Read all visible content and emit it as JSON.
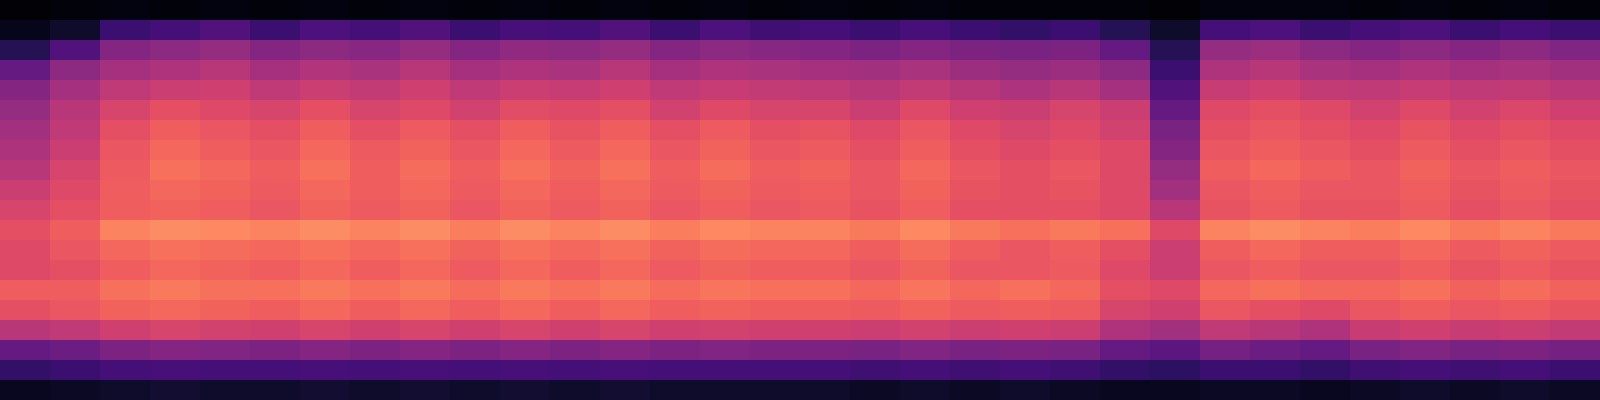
{
  "chart_data": {
    "type": "heatmap",
    "tick_labels": false,
    "zlim": [
      0,
      1
    ],
    "z": [
      [
        0.01,
        0.02,
        0.03,
        0.02,
        0.03,
        0.02,
        0.03,
        0.02,
        0.03,
        0.02,
        0.03,
        0.02,
        0.03,
        0.02,
        0.03,
        0.02,
        0.03,
        0.02,
        0.03,
        0.02,
        0.02,
        0.02,
        0.02,
        0.01,
        0.03,
        0.03,
        0.03,
        0.02,
        0.03,
        0.02,
        0.03,
        0.02
      ],
      [
        0.05,
        0.08,
        0.2,
        0.22,
        0.25,
        0.2,
        0.24,
        0.22,
        0.25,
        0.2,
        0.23,
        0.22,
        0.25,
        0.2,
        0.24,
        0.21,
        0.22,
        0.2,
        0.23,
        0.2,
        0.18,
        0.2,
        0.15,
        0.08,
        0.22,
        0.24,
        0.2,
        0.22,
        0.24,
        0.2,
        0.22,
        0.2
      ],
      [
        0.15,
        0.25,
        0.38,
        0.4,
        0.42,
        0.38,
        0.4,
        0.39,
        0.42,
        0.38,
        0.41,
        0.4,
        0.42,
        0.38,
        0.4,
        0.39,
        0.38,
        0.36,
        0.38,
        0.36,
        0.35,
        0.36,
        0.3,
        0.15,
        0.42,
        0.44,
        0.4,
        0.38,
        0.4,
        0.38,
        0.4,
        0.37
      ],
      [
        0.3,
        0.4,
        0.46,
        0.48,
        0.5,
        0.46,
        0.49,
        0.47,
        0.5,
        0.46,
        0.48,
        0.47,
        0.5,
        0.46,
        0.48,
        0.47,
        0.46,
        0.45,
        0.47,
        0.44,
        0.42,
        0.44,
        0.4,
        0.2,
        0.48,
        0.5,
        0.47,
        0.46,
        0.48,
        0.46,
        0.47,
        0.45
      ],
      [
        0.38,
        0.46,
        0.52,
        0.55,
        0.56,
        0.52,
        0.55,
        0.53,
        0.56,
        0.52,
        0.55,
        0.54,
        0.56,
        0.52,
        0.54,
        0.53,
        0.52,
        0.5,
        0.53,
        0.5,
        0.48,
        0.5,
        0.46,
        0.25,
        0.54,
        0.56,
        0.53,
        0.52,
        0.54,
        0.52,
        0.53,
        0.51
      ],
      [
        0.42,
        0.5,
        0.58,
        0.62,
        0.6,
        0.58,
        0.62,
        0.58,
        0.6,
        0.57,
        0.61,
        0.6,
        0.62,
        0.57,
        0.6,
        0.58,
        0.58,
        0.55,
        0.6,
        0.56,
        0.55,
        0.58,
        0.55,
        0.3,
        0.6,
        0.62,
        0.6,
        0.57,
        0.6,
        0.57,
        0.59,
        0.56
      ],
      [
        0.45,
        0.52,
        0.62,
        0.66,
        0.64,
        0.62,
        0.66,
        0.62,
        0.65,
        0.62,
        0.66,
        0.63,
        0.66,
        0.62,
        0.65,
        0.62,
        0.63,
        0.6,
        0.64,
        0.6,
        0.58,
        0.6,
        0.57,
        0.35,
        0.62,
        0.64,
        0.62,
        0.6,
        0.63,
        0.6,
        0.62,
        0.6
      ],
      [
        0.48,
        0.55,
        0.64,
        0.68,
        0.66,
        0.64,
        0.68,
        0.65,
        0.67,
        0.64,
        0.68,
        0.65,
        0.68,
        0.64,
        0.67,
        0.64,
        0.65,
        0.62,
        0.66,
        0.62,
        0.6,
        0.62,
        0.6,
        0.38,
        0.64,
        0.66,
        0.64,
        0.62,
        0.65,
        0.62,
        0.64,
        0.62
      ],
      [
        0.5,
        0.58,
        0.65,
        0.7,
        0.68,
        0.66,
        0.7,
        0.66,
        0.69,
        0.66,
        0.7,
        0.67,
        0.7,
        0.66,
        0.69,
        0.66,
        0.67,
        0.64,
        0.68,
        0.64,
        0.62,
        0.64,
        0.6,
        0.42,
        0.66,
        0.68,
        0.66,
        0.64,
        0.67,
        0.64,
        0.66,
        0.64
      ],
      [
        0.55,
        0.6,
        0.66,
        0.68,
        0.67,
        0.65,
        0.68,
        0.66,
        0.68,
        0.65,
        0.68,
        0.66,
        0.68,
        0.65,
        0.67,
        0.65,
        0.66,
        0.64,
        0.67,
        0.63,
        0.62,
        0.63,
        0.6,
        0.45,
        0.64,
        0.66,
        0.64,
        0.64,
        0.66,
        0.63,
        0.65,
        0.63
      ],
      [
        0.58,
        0.62,
        0.66,
        0.67,
        0.66,
        0.64,
        0.67,
        0.65,
        0.67,
        0.64,
        0.67,
        0.65,
        0.67,
        0.64,
        0.66,
        0.64,
        0.65,
        0.63,
        0.66,
        0.62,
        0.62,
        0.62,
        0.6,
        0.5,
        0.63,
        0.65,
        0.63,
        0.63,
        0.65,
        0.62,
        0.64,
        0.62
      ],
      [
        0.62,
        0.66,
        0.74,
        0.76,
        0.75,
        0.74,
        0.76,
        0.74,
        0.76,
        0.73,
        0.76,
        0.74,
        0.76,
        0.73,
        0.75,
        0.74,
        0.74,
        0.72,
        0.75,
        0.72,
        0.7,
        0.72,
        0.7,
        0.6,
        0.74,
        0.76,
        0.74,
        0.73,
        0.75,
        0.72,
        0.74,
        0.72
      ],
      [
        0.6,
        0.64,
        0.68,
        0.7,
        0.69,
        0.68,
        0.7,
        0.68,
        0.7,
        0.67,
        0.7,
        0.68,
        0.7,
        0.67,
        0.69,
        0.68,
        0.68,
        0.66,
        0.69,
        0.66,
        0.64,
        0.66,
        0.62,
        0.55,
        0.66,
        0.68,
        0.66,
        0.66,
        0.68,
        0.65,
        0.67,
        0.65
      ],
      [
        0.6,
        0.62,
        0.66,
        0.68,
        0.67,
        0.66,
        0.68,
        0.66,
        0.68,
        0.65,
        0.68,
        0.66,
        0.68,
        0.65,
        0.67,
        0.66,
        0.66,
        0.64,
        0.67,
        0.64,
        0.64,
        0.65,
        0.6,
        0.55,
        0.64,
        0.66,
        0.64,
        0.64,
        0.66,
        0.63,
        0.65,
        0.63
      ],
      [
        0.66,
        0.66,
        0.7,
        0.72,
        0.7,
        0.7,
        0.72,
        0.7,
        0.72,
        0.69,
        0.72,
        0.7,
        0.72,
        0.69,
        0.71,
        0.7,
        0.7,
        0.68,
        0.71,
        0.68,
        0.7,
        0.68,
        0.62,
        0.6,
        0.68,
        0.7,
        0.68,
        0.68,
        0.7,
        0.67,
        0.69,
        0.67
      ],
      [
        0.62,
        0.64,
        0.67,
        0.68,
        0.67,
        0.66,
        0.68,
        0.66,
        0.68,
        0.66,
        0.68,
        0.66,
        0.68,
        0.66,
        0.67,
        0.66,
        0.66,
        0.65,
        0.67,
        0.65,
        0.66,
        0.65,
        0.58,
        0.56,
        0.64,
        0.62,
        0.6,
        0.64,
        0.66,
        0.64,
        0.65,
        0.63
      ],
      [
        0.5,
        0.52,
        0.56,
        0.58,
        0.57,
        0.56,
        0.58,
        0.56,
        0.58,
        0.56,
        0.58,
        0.56,
        0.58,
        0.56,
        0.57,
        0.56,
        0.56,
        0.55,
        0.57,
        0.55,
        0.56,
        0.55,
        0.48,
        0.45,
        0.52,
        0.5,
        0.48,
        0.54,
        0.56,
        0.54,
        0.55,
        0.53
      ],
      [
        0.3,
        0.32,
        0.36,
        0.38,
        0.37,
        0.36,
        0.38,
        0.36,
        0.38,
        0.36,
        0.38,
        0.36,
        0.38,
        0.36,
        0.37,
        0.36,
        0.36,
        0.35,
        0.37,
        0.35,
        0.36,
        0.35,
        0.3,
        0.28,
        0.34,
        0.32,
        0.3,
        0.35,
        0.37,
        0.35,
        0.36,
        0.34
      ],
      [
        0.18,
        0.2,
        0.22,
        0.23,
        0.22,
        0.22,
        0.23,
        0.22,
        0.23,
        0.22,
        0.23,
        0.22,
        0.23,
        0.22,
        0.22,
        0.22,
        0.22,
        0.21,
        0.22,
        0.21,
        0.22,
        0.21,
        0.18,
        0.17,
        0.2,
        0.2,
        0.18,
        0.21,
        0.22,
        0.21,
        0.22,
        0.2
      ],
      [
        0.06,
        0.07,
        0.08,
        0.09,
        0.08,
        0.08,
        0.09,
        0.08,
        0.09,
        0.08,
        0.09,
        0.08,
        0.09,
        0.08,
        0.08,
        0.08,
        0.08,
        0.07,
        0.08,
        0.07,
        0.08,
        0.07,
        0.06,
        0.06,
        0.07,
        0.07,
        0.06,
        0.07,
        0.08,
        0.07,
        0.08,
        0.07
      ]
    ]
  }
}
